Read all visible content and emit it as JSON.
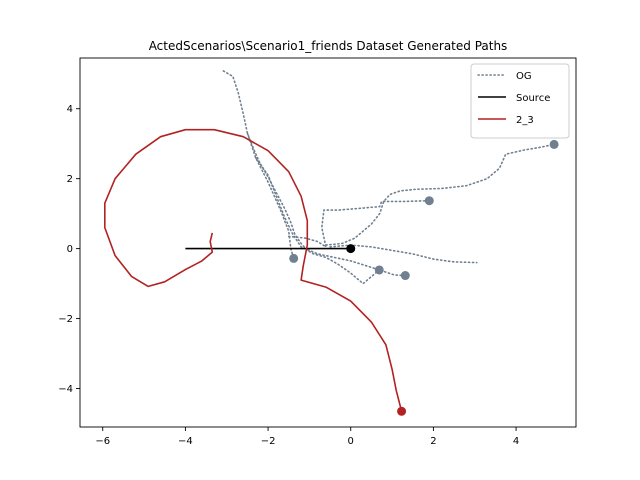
{
  "chart_data": {
    "type": "line",
    "title": "ActedScenarios\\Scenario1_friends Dataset Generated Paths",
    "xlabel": "",
    "ylabel": "",
    "xlim": [
      -6.55,
      5.45
    ],
    "ylim": [
      -5.1,
      5.45
    ],
    "xticks": [
      -6,
      -4,
      -2,
      0,
      2,
      4
    ],
    "yticks": [
      -4,
      -2,
      0,
      2,
      4
    ],
    "grid": false,
    "legend_position": "top-right",
    "colors": {
      "og": "#708090",
      "source": "#000000",
      "generated": "#b22222"
    },
    "legend": [
      {
        "label": "OG",
        "style": "dotted",
        "color": "#708090"
      },
      {
        "label": "Source",
        "style": "solid",
        "color": "#000000"
      },
      {
        "label": "2_3",
        "style": "solid",
        "color": "#b22222"
      }
    ],
    "series": [
      {
        "name": "OG",
        "style": "dotted",
        "color": "#708090",
        "points": [
          [
            -3.08,
            5.08
          ],
          [
            -2.85,
            4.92
          ],
          [
            -2.72,
            4.45
          ],
          [
            -2.6,
            3.85
          ],
          [
            -2.5,
            3.3
          ],
          [
            -2.35,
            2.85
          ],
          [
            -2.2,
            2.45
          ],
          [
            -2.0,
            2.05
          ],
          [
            -1.8,
            1.6
          ],
          [
            -1.6,
            1.15
          ],
          [
            -1.45,
            0.75
          ],
          [
            -1.35,
            0.4
          ],
          [
            -1.2,
            0.15
          ],
          [
            -1.05,
            -0.05
          ],
          [
            -0.9,
            -0.15
          ],
          [
            -0.6,
            -0.25
          ],
          [
            -0.3,
            -0.45
          ],
          [
            0.0,
            -0.7
          ],
          [
            0.3,
            -1.0
          ],
          [
            0.5,
            -0.8
          ],
          [
            0.69,
            -0.61
          ]
        ],
        "end": [
          0.69,
          -0.61
        ]
      },
      {
        "name": "OG",
        "style": "dotted",
        "color": "#708090",
        "points": [
          [
            -2.3,
            2.6
          ],
          [
            -2.0,
            2.1
          ],
          [
            -1.8,
            1.5
          ],
          [
            -1.6,
            0.9
          ],
          [
            -1.4,
            0.4
          ],
          [
            -1.2,
            0.05
          ],
          [
            -0.8,
            -0.15
          ],
          [
            -0.4,
            -0.25
          ],
          [
            0.0,
            -0.35
          ],
          [
            0.4,
            -0.5
          ],
          [
            0.8,
            -0.65
          ],
          [
            1.05,
            -0.75
          ],
          [
            1.32,
            -0.77
          ]
        ],
        "end": [
          1.32,
          -0.77
        ]
      },
      {
        "name": "OG",
        "style": "dotted",
        "color": "#708090",
        "points": [
          [
            -2.5,
            3.3
          ],
          [
            -2.3,
            2.6
          ],
          [
            -2.0,
            1.9
          ],
          [
            -1.7,
            1.1
          ],
          [
            -1.5,
            0.5
          ],
          [
            -1.45,
            0.0
          ],
          [
            -1.38,
            -0.28
          ]
        ],
        "end": [
          -1.38,
          -0.28
        ]
      },
      {
        "name": "OG",
        "style": "dotted",
        "color": "#708090",
        "points": [
          [
            -1.5,
            0.35
          ],
          [
            -1.1,
            0.3
          ],
          [
            -0.8,
            0.2
          ],
          [
            -0.6,
            0.05
          ],
          [
            -0.7,
            0.6
          ],
          [
            -0.65,
            1.1
          ],
          [
            -0.3,
            1.1
          ],
          [
            0.2,
            1.15
          ],
          [
            0.7,
            1.2
          ],
          [
            0.75,
            1.35
          ],
          [
            1.3,
            1.35
          ],
          [
            1.9,
            1.37
          ]
        ],
        "end": [
          1.9,
          1.37
        ]
      },
      {
        "name": "OG",
        "style": "dotted",
        "color": "#708090",
        "points": [
          [
            -0.6,
            0.1
          ],
          [
            -0.2,
            0.15
          ],
          [
            0.1,
            0.3
          ],
          [
            0.3,
            0.5
          ],
          [
            0.5,
            0.7
          ],
          [
            0.7,
            1.0
          ],
          [
            0.8,
            1.35
          ],
          [
            0.95,
            1.55
          ],
          [
            1.2,
            1.65
          ],
          [
            1.6,
            1.7
          ],
          [
            2.2,
            1.72
          ],
          [
            2.8,
            1.8
          ],
          [
            3.3,
            2.0
          ],
          [
            3.6,
            2.3
          ],
          [
            3.75,
            2.7
          ],
          [
            4.2,
            2.82
          ],
          [
            4.6,
            2.9
          ],
          [
            4.92,
            2.98
          ]
        ],
        "end": [
          4.92,
          2.98
        ]
      },
      {
        "name": "OG",
        "style": "dotted",
        "color": "#708090",
        "points": [
          [
            -0.5,
            0.05
          ],
          [
            0.0,
            0.1
          ],
          [
            0.5,
            0.05
          ],
          [
            1.0,
            -0.05
          ],
          [
            1.5,
            -0.15
          ],
          [
            2.0,
            -0.3
          ],
          [
            2.5,
            -0.38
          ],
          [
            3.05,
            -0.4
          ]
        ]
      },
      {
        "name": "Source",
        "style": "solid",
        "color": "#000000",
        "points": [
          [
            -4.0,
            0.0
          ],
          [
            0.0,
            0.0
          ]
        ],
        "end": [
          0.0,
          0.0
        ]
      },
      {
        "name": "2_3",
        "style": "solid",
        "color": "#b22222",
        "points": [
          [
            -3.35,
            0.45
          ],
          [
            -3.4,
            0.2
          ],
          [
            -3.35,
            -0.1
          ],
          [
            -3.6,
            -0.35
          ],
          [
            -4.0,
            -0.6
          ],
          [
            -4.5,
            -0.95
          ],
          [
            -4.9,
            -1.08
          ],
          [
            -5.3,
            -0.8
          ],
          [
            -5.7,
            -0.2
          ],
          [
            -5.95,
            0.6
          ],
          [
            -5.95,
            1.3
          ],
          [
            -5.7,
            2.0
          ],
          [
            -5.2,
            2.7
          ],
          [
            -4.6,
            3.2
          ],
          [
            -4.0,
            3.4
          ],
          [
            -3.3,
            3.4
          ],
          [
            -2.6,
            3.2
          ],
          [
            -2.0,
            2.8
          ],
          [
            -1.5,
            2.2
          ],
          [
            -1.2,
            1.5
          ],
          [
            -1.05,
            0.8
          ],
          [
            -1.05,
            0.1
          ],
          [
            -1.15,
            -0.5
          ],
          [
            -1.2,
            -0.9
          ],
          [
            -0.6,
            -1.1
          ],
          [
            0.0,
            -1.5
          ],
          [
            0.5,
            -2.1
          ],
          [
            0.85,
            -2.75
          ],
          [
            1.0,
            -3.45
          ],
          [
            1.1,
            -4.05
          ],
          [
            1.23,
            -4.65
          ]
        ],
        "end": [
          1.23,
          -4.65
        ]
      }
    ]
  }
}
